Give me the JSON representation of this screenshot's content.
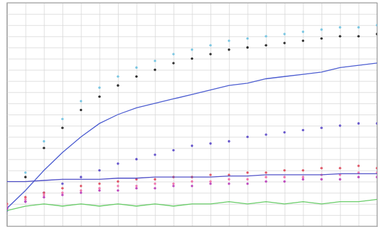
{
  "chart_data": {
    "type": "line",
    "x": [
      0,
      5,
      10,
      15,
      20,
      25,
      30,
      35,
      40,
      45,
      50,
      55,
      60,
      65,
      70,
      75,
      80,
      85,
      90,
      95,
      100
    ],
    "series": [
      {
        "color": "#333333",
        "marker": "dot",
        "line_style": "none",
        "values": [
          8,
          22,
          35,
          44,
          52,
          58,
          63,
          67,
          70,
          73,
          75,
          77,
          79,
          80,
          81,
          82,
          83,
          84,
          85,
          85,
          86
        ]
      },
      {
        "color": "#7ec8e3",
        "marker": "dot",
        "line_style": "none",
        "values": [
          9,
          24,
          38,
          48,
          56,
          62,
          67,
          71,
          74,
          77,
          79,
          81,
          83,
          84,
          85,
          86,
          87,
          88,
          89,
          89,
          90
        ]
      },
      {
        "color": "#4a5bd0",
        "marker": "none",
        "line_style": "solid",
        "values": [
          8,
          16,
          25,
          33,
          40,
          46,
          50,
          53,
          55,
          57,
          59,
          61,
          63,
          64,
          66,
          67,
          68,
          69,
          71,
          72,
          73
        ]
      },
      {
        "color": "#6a5acd",
        "marker": "dot",
        "line_style": "none",
        "values": [
          7,
          11,
          15,
          19,
          22,
          25,
          28,
          30,
          32,
          34,
          36,
          37,
          38,
          40,
          41,
          42,
          43,
          44,
          45,
          46,
          46
        ]
      },
      {
        "color": "#e05a6a",
        "marker": "dot",
        "line_style": "none",
        "values": [
          10,
          13,
          15,
          17,
          18,
          19,
          20,
          21,
          21,
          22,
          22,
          23,
          23,
          24,
          24,
          25,
          25,
          26,
          26,
          27,
          26
        ]
      },
      {
        "color": "#f07ab0",
        "marker": "dot",
        "line_style": "none",
        "values": [
          9,
          12,
          14,
          15,
          16,
          17,
          18,
          18,
          19,
          19,
          20,
          20,
          21,
          21,
          22,
          22,
          22,
          23,
          23,
          24,
          24
        ]
      },
      {
        "color": "#c04fc0",
        "marker": "dot",
        "line_style": "none",
        "values": [
          8,
          11,
          13,
          14,
          15,
          16,
          16,
          17,
          17,
          18,
          18,
          19,
          19,
          19,
          20,
          20,
          21,
          21,
          21,
          22,
          22
        ]
      },
      {
        "color": "#5050c8",
        "marker": "none",
        "line_style": "solid",
        "values": [
          20,
          20,
          20.5,
          21,
          21,
          21,
          21.5,
          21.5,
          22,
          22,
          22,
          22,
          22.5,
          22.5,
          23,
          23,
          23,
          23,
          23.5,
          23.5,
          23.5
        ]
      },
      {
        "color": "#66cc66",
        "marker": "none",
        "line_style": "solid",
        "values": [
          7,
          9,
          10,
          9,
          10,
          9,
          10,
          9,
          10,
          9,
          10,
          10,
          11,
          10,
          11,
          10,
          11,
          10,
          11,
          11,
          12
        ]
      }
    ],
    "xlim": [
      0,
      100
    ],
    "ylim": [
      0,
      100
    ],
    "xticks": [
      0,
      5,
      10,
      15,
      20,
      25,
      30,
      35,
      40,
      45,
      50,
      55,
      60,
      65,
      70,
      75,
      80,
      85,
      90,
      95,
      100
    ],
    "yticks": [
      0,
      5,
      10,
      15,
      20,
      25,
      30,
      35,
      40,
      45,
      50,
      55,
      60,
      65,
      70,
      75,
      80,
      85,
      90,
      95,
      100
    ],
    "grid": true,
    "tick_labels": false
  }
}
